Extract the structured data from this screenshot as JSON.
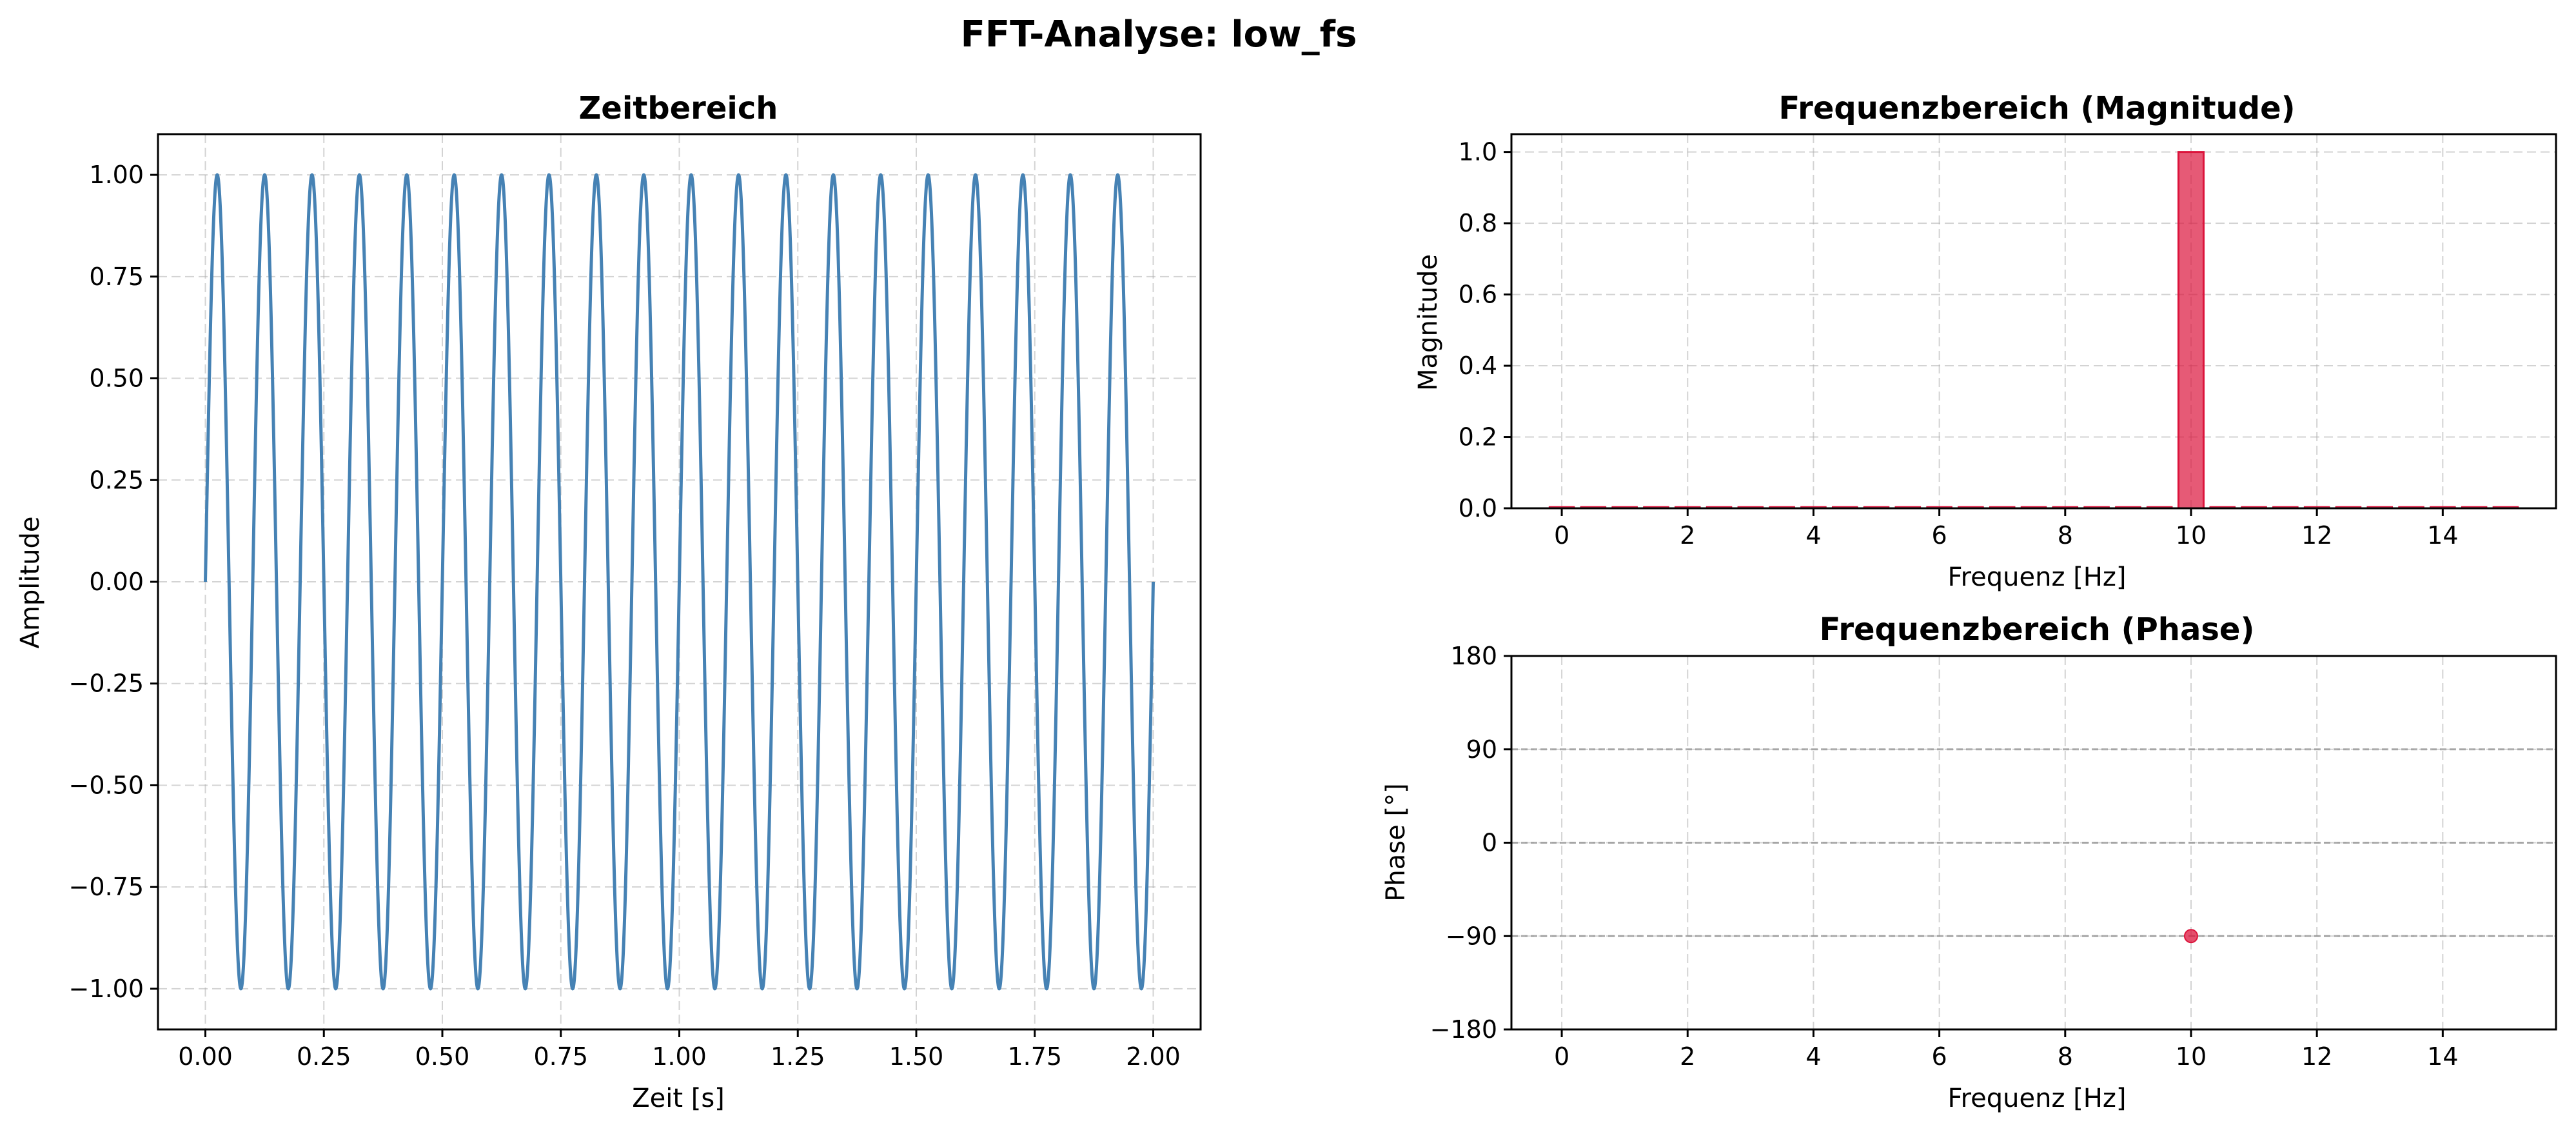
{
  "suptitle": "FFT-Analyse: low_fs",
  "colors": {
    "time_line": "#4682b4",
    "magnitude_bar": "#dc143c",
    "phase_marker": "#dc143c"
  },
  "chart_data": [
    {
      "id": "time",
      "type": "line",
      "title": "Zeitbereich",
      "xlabel": "Zeit [s]",
      "ylabel": "Amplitude",
      "xlim": [
        -0.1,
        2.1
      ],
      "ylim": [
        -1.1,
        1.1
      ],
      "xticks": [
        0.0,
        0.25,
        0.5,
        0.75,
        1.0,
        1.25,
        1.5,
        1.75,
        2.0
      ],
      "xtick_labels": [
        "0.00",
        "0.25",
        "0.50",
        "0.75",
        "1.00",
        "1.25",
        "1.50",
        "1.75",
        "2.00"
      ],
      "yticks": [
        -1.0,
        -0.75,
        -0.5,
        -0.25,
        0.0,
        0.25,
        0.5,
        0.75,
        1.0
      ],
      "ytick_labels": [
        "−1.00",
        "−0.75",
        "−0.50",
        "−0.25",
        "0.00",
        "0.25",
        "0.50",
        "0.75",
        "1.00"
      ],
      "grid": true,
      "series": [
        {
          "kind": "sine",
          "frequency": 10,
          "amplitude": 1.0,
          "t_start": 0.0,
          "t_end": 2.0
        }
      ]
    },
    {
      "id": "magnitude",
      "type": "bar",
      "title": "Frequenzbereich (Magnitude)",
      "xlabel": "Frequenz [Hz]",
      "ylabel": "Magnitude",
      "xlim": [
        -0.8,
        15.8
      ],
      "ylim": [
        0.0,
        1.05
      ],
      "xticks": [
        0,
        2,
        4,
        6,
        8,
        10,
        12,
        14
      ],
      "xtick_labels": [
        "0",
        "2",
        "4",
        "6",
        "8",
        "10",
        "12",
        "14"
      ],
      "yticks": [
        0.0,
        0.2,
        0.4,
        0.6,
        0.8,
        1.0
      ],
      "ytick_labels": [
        "0.0",
        "0.2",
        "0.4",
        "0.6",
        "0.8",
        "1.0"
      ],
      "grid": true,
      "x": [
        0,
        0.5,
        1,
        1.5,
        2,
        2.5,
        3,
        3.5,
        4,
        4.5,
        5,
        5.5,
        6,
        6.5,
        7,
        7.5,
        8,
        8.5,
        9,
        9.5,
        10,
        10.5,
        11,
        11.5,
        12,
        12.5,
        13,
        13.5,
        14,
        14.5,
        15
      ],
      "values": [
        0,
        0,
        0,
        0,
        0,
        0,
        0,
        0,
        0,
        0,
        0,
        0,
        0,
        0,
        0,
        0,
        0,
        0,
        0,
        0,
        1.0,
        0,
        0,
        0,
        0,
        0,
        0,
        0,
        0,
        0,
        0
      ]
    },
    {
      "id": "phase",
      "type": "scatter",
      "title": "Frequenzbereich (Phase)",
      "xlabel": "Frequenz [Hz]",
      "ylabel": "Phase [°]",
      "xlim": [
        -0.8,
        15.8
      ],
      "ylim": [
        -180,
        180
      ],
      "xticks": [
        0,
        2,
        4,
        6,
        8,
        10,
        12,
        14
      ],
      "xtick_labels": [
        "0",
        "2",
        "4",
        "6",
        "8",
        "10",
        "12",
        "14"
      ],
      "yticks": [
        -180,
        -90,
        0,
        90,
        180
      ],
      "ytick_labels": [
        "−180",
        "−90",
        "0",
        "90",
        "180"
      ],
      "reference_lines": [
        -90,
        0,
        90
      ],
      "grid": true,
      "points": [
        {
          "x": 10,
          "y": -90
        }
      ]
    }
  ]
}
